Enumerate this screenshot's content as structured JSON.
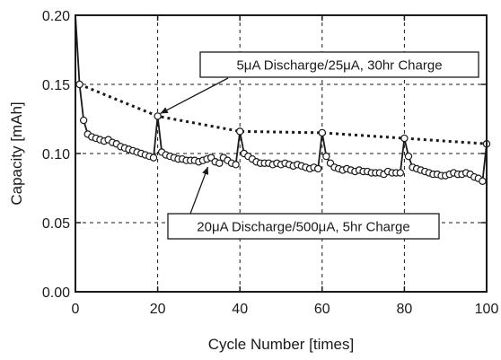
{
  "chart_data": {
    "type": "line",
    "title": "",
    "xlabel": "Cycle Number [times]",
    "ylabel": "Capacity [mAh]",
    "xlim": [
      0,
      100
    ],
    "ylim": [
      0,
      0.2
    ],
    "x_ticks": [
      "0",
      "20",
      "40",
      "60",
      "80",
      "100"
    ],
    "y_ticks": [
      "0.00",
      "0.05",
      "0.10",
      "0.15",
      "0.20"
    ],
    "grid": "dashed",
    "legend": "none",
    "colors": {
      "ink": "#1a1a1a",
      "marker_fill": "#ffffff"
    },
    "series": [
      {
        "style": "dotted",
        "annotation": "5μA Discharge/25μA, 30hr Charge",
        "x": [
          1,
          20,
          40,
          60,
          80,
          100
        ],
        "y": [
          0.15,
          0.127,
          0.116,
          0.115,
          0.111,
          0.107
        ]
      },
      {
        "style": "solid-circles",
        "annotation": "20μA Discharge/500μA, 5hr Charge",
        "x": [
          0,
          1,
          2,
          3,
          4,
          5,
          6,
          7,
          8,
          9,
          10,
          11,
          12,
          13,
          14,
          15,
          16,
          17,
          18,
          19,
          20,
          21,
          22,
          23,
          24,
          25,
          26,
          27,
          28,
          29,
          30,
          31,
          32,
          33,
          34,
          35,
          36,
          37,
          38,
          39,
          40,
          41,
          42,
          43,
          44,
          45,
          46,
          47,
          48,
          49,
          50,
          51,
          52,
          53,
          54,
          55,
          56,
          57,
          58,
          59,
          60,
          61,
          62,
          63,
          64,
          65,
          66,
          67,
          68,
          69,
          70,
          71,
          72,
          73,
          74,
          75,
          76,
          77,
          78,
          79,
          80,
          81,
          82,
          83,
          84,
          85,
          86,
          87,
          88,
          89,
          90,
          91,
          92,
          93,
          94,
          95,
          96,
          97,
          98,
          99,
          100
        ],
        "y": [
          0.2,
          0.15,
          0.124,
          0.114,
          0.112,
          0.111,
          0.11,
          0.109,
          0.11,
          0.108,
          0.107,
          0.105,
          0.104,
          0.103,
          0.102,
          0.101,
          0.1,
          0.099,
          0.098,
          0.097,
          0.127,
          0.101,
          0.099,
          0.098,
          0.097,
          0.096,
          0.096,
          0.095,
          0.095,
          0.095,
          0.094,
          0.095,
          0.096,
          0.097,
          0.094,
          0.093,
          0.097,
          0.095,
          0.093,
          0.092,
          0.116,
          0.1,
          0.098,
          0.096,
          0.094,
          0.093,
          0.093,
          0.093,
          0.092,
          0.093,
          0.092,
          0.093,
          0.092,
          0.091,
          0.092,
          0.091,
          0.09,
          0.089,
          0.09,
          0.089,
          0.115,
          0.098,
          0.093,
          0.09,
          0.089,
          0.088,
          0.089,
          0.088,
          0.087,
          0.088,
          0.087,
          0.087,
          0.086,
          0.086,
          0.086,
          0.085,
          0.087,
          0.086,
          0.086,
          0.086,
          0.111,
          0.098,
          0.09,
          0.089,
          0.088,
          0.087,
          0.086,
          0.085,
          0.085,
          0.084,
          0.084,
          0.085,
          0.086,
          0.085,
          0.085,
          0.086,
          0.085,
          0.083,
          0.082,
          0.08,
          0.107
        ]
      }
    ]
  }
}
